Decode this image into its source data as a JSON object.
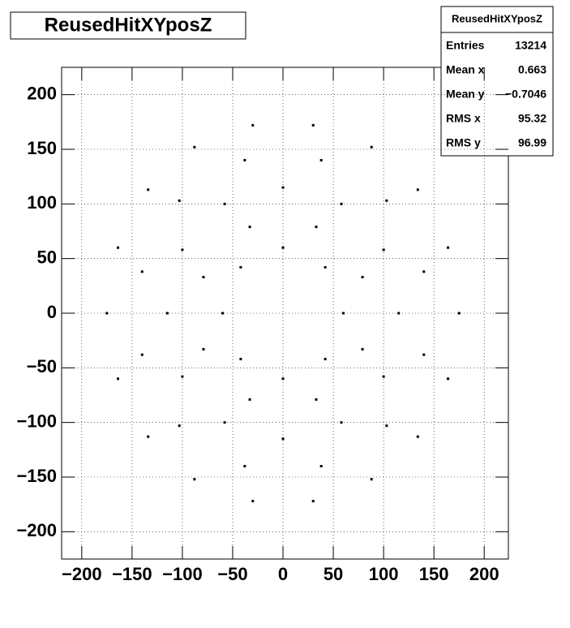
{
  "chart_data": {
    "type": "scatter",
    "title": "ReusedHitXYposZ",
    "stats": {
      "title": "ReusedHitXYposZ",
      "rows": [
        [
          "Entries",
          "13214"
        ],
        [
          "Mean x",
          "0.663"
        ],
        [
          "Mean y",
          "−0.7046"
        ],
        [
          "RMS x",
          "95.32"
        ],
        [
          "RMS y",
          "96.99"
        ]
      ]
    },
    "xlim": [
      -220,
      224
    ],
    "ylim": [
      -225,
      225
    ],
    "xticks": [
      {
        "value": -200,
        "label": "−200"
      },
      {
        "value": -150,
        "label": "−150"
      },
      {
        "value": -100,
        "label": "−100"
      },
      {
        "value": -50,
        "label": "−50"
      },
      0,
      50,
      100,
      150,
      200
    ],
    "yticks": [
      {
        "value": -200,
        "label": "−200"
      },
      {
        "value": -150,
        "label": "−150"
      },
      {
        "value": -100,
        "label": "−100"
      },
      {
        "value": -50,
        "label": "−50"
      },
      0,
      50,
      100,
      150,
      200
    ],
    "grid": true,
    "color": "#000000",
    "x": [
      60,
      42,
      0,
      -42,
      -60,
      -42,
      0,
      42,
      79,
      33,
      -33,
      -79,
      -79,
      -33,
      33,
      79,
      115,
      100,
      58,
      0,
      -58,
      -100,
      -115,
      -100,
      -58,
      0,
      58,
      100,
      140,
      103,
      38,
      -38,
      -103,
      -140,
      -140,
      -103,
      -38,
      38,
      103,
      140,
      175,
      164,
      134,
      88,
      30,
      -30,
      -88,
      -134,
      -164,
      -175,
      -164,
      -134,
      -88,
      -30,
      30,
      88,
      134,
      164
    ],
    "y": [
      0,
      42,
      60,
      42,
      0,
      -42,
      -60,
      -42,
      33,
      79,
      79,
      33,
      -33,
      -79,
      -79,
      -33,
      0,
      58,
      100,
      115,
      100,
      58,
      0,
      -58,
      -100,
      -115,
      -100,
      -58,
      38,
      103,
      140,
      140,
      103,
      38,
      -38,
      -103,
      -140,
      -140,
      -103,
      -38,
      0,
      60,
      113,
      152,
      172,
      172,
      152,
      113,
      60,
      0,
      -60,
      -113,
      -152,
      -172,
      -172,
      -152,
      -113,
      -60
    ]
  }
}
